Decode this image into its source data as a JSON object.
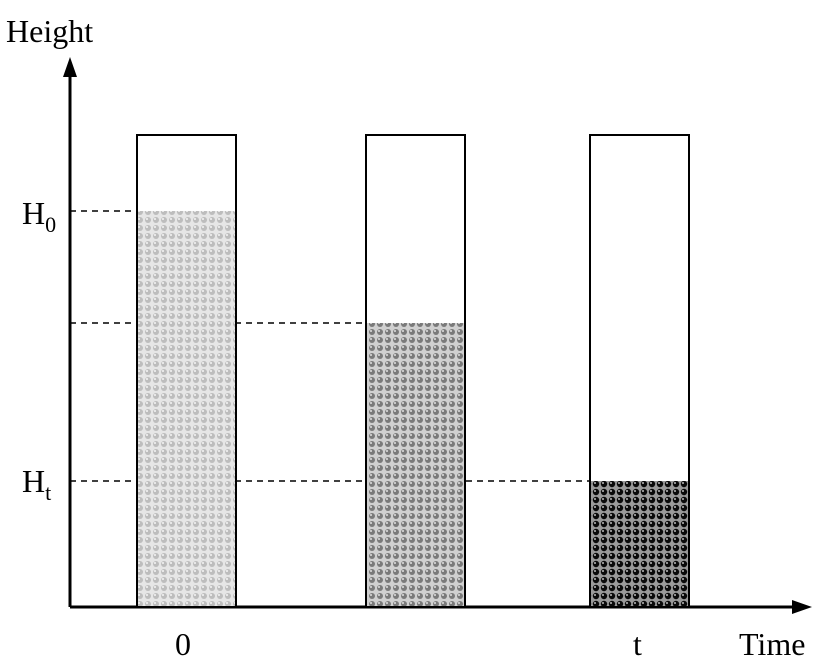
{
  "y_axis": {
    "label": "Height"
  },
  "x_axis": {
    "label": "Time"
  },
  "y_ticks": [
    {
      "base": "H",
      "sub": "0"
    },
    {
      "base": "H",
      "sub": "t"
    }
  ],
  "x_ticks": [
    "0",
    "t"
  ],
  "columns": [
    {
      "time_label": "0",
      "fill_fraction": 0.84,
      "shade": "#bdbdbd"
    },
    {
      "time_label": "",
      "fill_fraction": 0.6,
      "shade": "#8a8a8a"
    },
    {
      "time_label": "t",
      "fill_fraction": 0.27,
      "shade": "#1a1a1a"
    }
  ]
}
